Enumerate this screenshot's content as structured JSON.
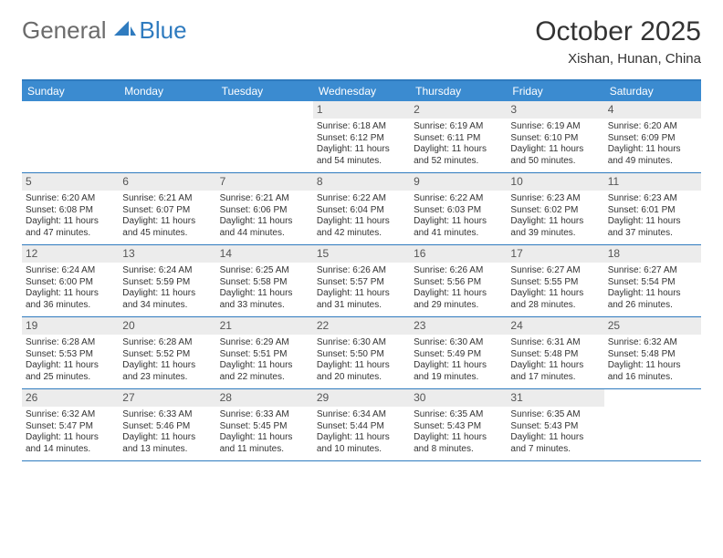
{
  "brand": {
    "general": "General",
    "blue": "Blue"
  },
  "colors": {
    "brandBlue": "#2f7bbf",
    "headerBar": "#3b8bd0",
    "dayShade": "#ececec",
    "text": "#333333",
    "logoGray": "#6b6b6b",
    "bg": "#ffffff"
  },
  "typography": {
    "title_fontsize": 30,
    "location_fontsize": 15,
    "dow_fontsize": 12,
    "daynum_fontsize": 12,
    "cell_fontsize": 10
  },
  "title": "October 2025",
  "location": "Xishan, Hunan, China",
  "dows": [
    "Sunday",
    "Monday",
    "Tuesday",
    "Wednesday",
    "Thursday",
    "Friday",
    "Saturday"
  ],
  "weeks": [
    [
      {
        "empty": true
      },
      {
        "empty": true
      },
      {
        "empty": true
      },
      {
        "n": "1",
        "sr": "Sunrise: 6:18 AM",
        "ss": "Sunset: 6:12 PM",
        "d1": "Daylight: 11 hours",
        "d2": "and 54 minutes."
      },
      {
        "n": "2",
        "sr": "Sunrise: 6:19 AM",
        "ss": "Sunset: 6:11 PM",
        "d1": "Daylight: 11 hours",
        "d2": "and 52 minutes."
      },
      {
        "n": "3",
        "sr": "Sunrise: 6:19 AM",
        "ss": "Sunset: 6:10 PM",
        "d1": "Daylight: 11 hours",
        "d2": "and 50 minutes."
      },
      {
        "n": "4",
        "sr": "Sunrise: 6:20 AM",
        "ss": "Sunset: 6:09 PM",
        "d1": "Daylight: 11 hours",
        "d2": "and 49 minutes."
      }
    ],
    [
      {
        "n": "5",
        "sr": "Sunrise: 6:20 AM",
        "ss": "Sunset: 6:08 PM",
        "d1": "Daylight: 11 hours",
        "d2": "and 47 minutes."
      },
      {
        "n": "6",
        "sr": "Sunrise: 6:21 AM",
        "ss": "Sunset: 6:07 PM",
        "d1": "Daylight: 11 hours",
        "d2": "and 45 minutes."
      },
      {
        "n": "7",
        "sr": "Sunrise: 6:21 AM",
        "ss": "Sunset: 6:06 PM",
        "d1": "Daylight: 11 hours",
        "d2": "and 44 minutes."
      },
      {
        "n": "8",
        "sr": "Sunrise: 6:22 AM",
        "ss": "Sunset: 6:04 PM",
        "d1": "Daylight: 11 hours",
        "d2": "and 42 minutes."
      },
      {
        "n": "9",
        "sr": "Sunrise: 6:22 AM",
        "ss": "Sunset: 6:03 PM",
        "d1": "Daylight: 11 hours",
        "d2": "and 41 minutes."
      },
      {
        "n": "10",
        "sr": "Sunrise: 6:23 AM",
        "ss": "Sunset: 6:02 PM",
        "d1": "Daylight: 11 hours",
        "d2": "and 39 minutes."
      },
      {
        "n": "11",
        "sr": "Sunrise: 6:23 AM",
        "ss": "Sunset: 6:01 PM",
        "d1": "Daylight: 11 hours",
        "d2": "and 37 minutes."
      }
    ],
    [
      {
        "n": "12",
        "sr": "Sunrise: 6:24 AM",
        "ss": "Sunset: 6:00 PM",
        "d1": "Daylight: 11 hours",
        "d2": "and 36 minutes."
      },
      {
        "n": "13",
        "sr": "Sunrise: 6:24 AM",
        "ss": "Sunset: 5:59 PM",
        "d1": "Daylight: 11 hours",
        "d2": "and 34 minutes."
      },
      {
        "n": "14",
        "sr": "Sunrise: 6:25 AM",
        "ss": "Sunset: 5:58 PM",
        "d1": "Daylight: 11 hours",
        "d2": "and 33 minutes."
      },
      {
        "n": "15",
        "sr": "Sunrise: 6:26 AM",
        "ss": "Sunset: 5:57 PM",
        "d1": "Daylight: 11 hours",
        "d2": "and 31 minutes."
      },
      {
        "n": "16",
        "sr": "Sunrise: 6:26 AM",
        "ss": "Sunset: 5:56 PM",
        "d1": "Daylight: 11 hours",
        "d2": "and 29 minutes."
      },
      {
        "n": "17",
        "sr": "Sunrise: 6:27 AM",
        "ss": "Sunset: 5:55 PM",
        "d1": "Daylight: 11 hours",
        "d2": "and 28 minutes."
      },
      {
        "n": "18",
        "sr": "Sunrise: 6:27 AM",
        "ss": "Sunset: 5:54 PM",
        "d1": "Daylight: 11 hours",
        "d2": "and 26 minutes."
      }
    ],
    [
      {
        "n": "19",
        "sr": "Sunrise: 6:28 AM",
        "ss": "Sunset: 5:53 PM",
        "d1": "Daylight: 11 hours",
        "d2": "and 25 minutes."
      },
      {
        "n": "20",
        "sr": "Sunrise: 6:28 AM",
        "ss": "Sunset: 5:52 PM",
        "d1": "Daylight: 11 hours",
        "d2": "and 23 minutes."
      },
      {
        "n": "21",
        "sr": "Sunrise: 6:29 AM",
        "ss": "Sunset: 5:51 PM",
        "d1": "Daylight: 11 hours",
        "d2": "and 22 minutes."
      },
      {
        "n": "22",
        "sr": "Sunrise: 6:30 AM",
        "ss": "Sunset: 5:50 PM",
        "d1": "Daylight: 11 hours",
        "d2": "and 20 minutes."
      },
      {
        "n": "23",
        "sr": "Sunrise: 6:30 AM",
        "ss": "Sunset: 5:49 PM",
        "d1": "Daylight: 11 hours",
        "d2": "and 19 minutes."
      },
      {
        "n": "24",
        "sr": "Sunrise: 6:31 AM",
        "ss": "Sunset: 5:48 PM",
        "d1": "Daylight: 11 hours",
        "d2": "and 17 minutes."
      },
      {
        "n": "25",
        "sr": "Sunrise: 6:32 AM",
        "ss": "Sunset: 5:48 PM",
        "d1": "Daylight: 11 hours",
        "d2": "and 16 minutes."
      }
    ],
    [
      {
        "n": "26",
        "sr": "Sunrise: 6:32 AM",
        "ss": "Sunset: 5:47 PM",
        "d1": "Daylight: 11 hours",
        "d2": "and 14 minutes."
      },
      {
        "n": "27",
        "sr": "Sunrise: 6:33 AM",
        "ss": "Sunset: 5:46 PM",
        "d1": "Daylight: 11 hours",
        "d2": "and 13 minutes."
      },
      {
        "n": "28",
        "sr": "Sunrise: 6:33 AM",
        "ss": "Sunset: 5:45 PM",
        "d1": "Daylight: 11 hours",
        "d2": "and 11 minutes."
      },
      {
        "n": "29",
        "sr": "Sunrise: 6:34 AM",
        "ss": "Sunset: 5:44 PM",
        "d1": "Daylight: 11 hours",
        "d2": "and 10 minutes."
      },
      {
        "n": "30",
        "sr": "Sunrise: 6:35 AM",
        "ss": "Sunset: 5:43 PM",
        "d1": "Daylight: 11 hours",
        "d2": "and 8 minutes."
      },
      {
        "n": "31",
        "sr": "Sunrise: 6:35 AM",
        "ss": "Sunset: 5:43 PM",
        "d1": "Daylight: 11 hours",
        "d2": "and 7 minutes."
      },
      {
        "empty": true
      }
    ]
  ]
}
